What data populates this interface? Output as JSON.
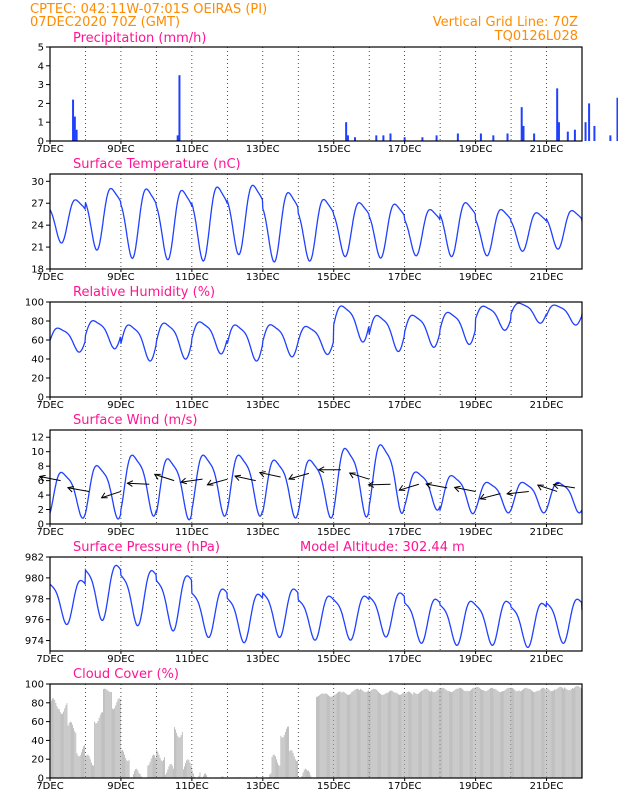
{
  "header": {
    "station": "CPTEC:   042:11W-07:01S   OEIRAS (PI)",
    "run": "07DEC2020 70Z (GMT)",
    "grid_note": "Vertical Grid Line: 70Z",
    "code": "TQ0126L028"
  },
  "colors": {
    "header": "#ff8c00",
    "title": "#ff1493",
    "series": "#2040ff",
    "cloud": "#a8a8a8"
  },
  "x_labels": [
    "7DEC",
    "9DEC",
    "11DEC",
    "13DEC",
    "15DEC",
    "17DEC",
    "19DEC",
    "21DEC"
  ],
  "chart_data": [
    {
      "type": "bar",
      "title": "Precipitation (mm/h)",
      "ylim": [
        0,
        5
      ],
      "yticks": [
        "0",
        "1",
        "2",
        "3",
        "4",
        "5"
      ],
      "x_unit": "days since 7DEC",
      "points": [
        [
          0.65,
          2.2
        ],
        [
          0.7,
          1.3
        ],
        [
          0.75,
          0.6
        ],
        [
          3.65,
          3.5
        ],
        [
          3.6,
          0.3
        ],
        [
          8.35,
          1.0
        ],
        [
          8.4,
          0.3
        ],
        [
          8.6,
          0.2
        ],
        [
          9.2,
          0.3
        ],
        [
          9.4,
          0.3
        ],
        [
          9.6,
          0.4
        ],
        [
          10.0,
          0.2
        ],
        [
          10.5,
          0.2
        ],
        [
          10.9,
          0.3
        ],
        [
          11.5,
          0.4
        ],
        [
          12.15,
          0.4
        ],
        [
          12.5,
          0.3
        ],
        [
          12.9,
          0.4
        ],
        [
          13.3,
          1.8
        ],
        [
          13.35,
          0.8
        ],
        [
          13.65,
          0.4
        ],
        [
          14.3,
          2.8
        ],
        [
          14.35,
          1.0
        ],
        [
          14.6,
          0.5
        ],
        [
          14.8,
          0.6
        ],
        [
          15.1,
          1.0
        ],
        [
          15.2,
          2.0
        ],
        [
          15.35,
          0.8
        ],
        [
          15.8,
          0.3
        ],
        [
          16.0,
          2.3
        ],
        [
          16.1,
          1.5
        ],
        [
          16.2,
          0.8
        ],
        [
          16.4,
          1.0
        ],
        [
          16.6,
          0.6
        ],
        [
          16.8,
          0.5
        ],
        [
          17.0,
          1.2
        ],
        [
          17.1,
          0.6
        ],
        [
          17.3,
          2.0
        ],
        [
          17.4,
          1.9
        ],
        [
          17.5,
          1.5
        ],
        [
          17.6,
          0.6
        ]
      ]
    },
    {
      "type": "line",
      "title": "Surface Temperature (nC)",
      "ylim": [
        18,
        31
      ],
      "yticks": [
        "18",
        "21",
        "24",
        "27",
        "30"
      ],
      "x_unit": "days since 7DEC",
      "mean": [
        25.0,
        25.5,
        25.0,
        24.8,
        25.0,
        25.5,
        24.5,
        24.0,
        24.0,
        23.8,
        23.5,
        24.0,
        23.5,
        23.5,
        23.8,
        23.5
      ],
      "amplitude": [
        2.8,
        4.0,
        4.5,
        4.5,
        4.8,
        4.5,
        4.5,
        4.0,
        3.5,
        3.5,
        3.0,
        3.5,
        3.0,
        2.5,
        2.5,
        2.5
      ]
    },
    {
      "type": "line",
      "title": "Relative Humidity (%)",
      "ylim": [
        0,
        100
      ],
      "yticks": [
        "0",
        "20",
        "40",
        "60",
        "80",
        "100"
      ],
      "x_unit": "days since 7DEC",
      "mean": [
        62,
        68,
        60,
        62,
        65,
        60,
        62,
        62,
        80,
        70,
        72,
        75,
        85,
        90,
        88,
        90
      ],
      "amplitude": [
        12,
        14,
        18,
        18,
        16,
        18,
        16,
        14,
        18,
        18,
        16,
        16,
        12,
        10,
        10,
        10
      ]
    },
    {
      "type": "line",
      "title": "Surface Wind (m/s)",
      "ylim": [
        0,
        13
      ],
      "yticks": [
        "0",
        "2",
        "4",
        "6",
        "8",
        "10",
        "12"
      ],
      "x_unit": "days since 7DEC",
      "mean": [
        4.5,
        5.0,
        6.0,
        5.5,
        6.0,
        6.0,
        5.5,
        5.5,
        6.5,
        7.0,
        5.0,
        4.5,
        4.0,
        4.0,
        4.0,
        4.0
      ],
      "amplitude": [
        3.0,
        3.5,
        4.0,
        4.0,
        4.0,
        4.0,
        3.8,
        3.8,
        4.5,
        4.5,
        2.5,
        2.5,
        2.0,
        2.0,
        2.0,
        2.5
      ],
      "arrows": [
        [
          0.3,
          6.0
        ],
        [
          1.1,
          4.5
        ],
        [
          2.0,
          4.5
        ],
        [
          2.8,
          5.5
        ],
        [
          3.5,
          6.0
        ],
        [
          4.3,
          6.2
        ],
        [
          5.0,
          6.2
        ],
        [
          5.8,
          6.0
        ],
        [
          6.5,
          6.5
        ],
        [
          7.3,
          7.0
        ],
        [
          8.2,
          7.5
        ],
        [
          9.0,
          6.2
        ],
        [
          9.6,
          5.5
        ],
        [
          10.4,
          5.5
        ],
        [
          11.2,
          5.0
        ],
        [
          12.0,
          4.5
        ],
        [
          12.7,
          4.2
        ],
        [
          13.5,
          4.5
        ],
        [
          14.3,
          4.5
        ],
        [
          14.8,
          5.0
        ]
      ]
    },
    {
      "type": "line",
      "title": "Surface Pressure (hPa)",
      "annotation": "Model Altitude: 302.44 m",
      "ylim": [
        973,
        982
      ],
      "yticks": [
        "974",
        "976",
        "978",
        "980",
        "982"
      ],
      "x_unit": "days since 7DEC",
      "mean": [
        978.0,
        979.0,
        978.5,
        978.0,
        977.0,
        976.5,
        977.0,
        976.5,
        976.5,
        976.8,
        976.2,
        976.0,
        976.0,
        975.8,
        976.2,
        975.5
      ],
      "amplitude": [
        2.0,
        2.5,
        2.5,
        2.5,
        2.2,
        2.2,
        2.2,
        2.0,
        2.0,
        2.0,
        2.0,
        2.0,
        2.0,
        2.0,
        2.0,
        2.0
      ]
    },
    {
      "type": "bar",
      "title": "Cloud Cover (%)",
      "ylim": [
        0,
        100
      ],
      "yticks": [
        "0",
        "20",
        "40",
        "60",
        "80",
        "100"
      ],
      "x_unit": "days since 7DEC",
      "segments": [
        [
          0.0,
          0.25,
          85
        ],
        [
          0.25,
          0.5,
          80
        ],
        [
          0.5,
          0.75,
          60
        ],
        [
          0.75,
          1.0,
          35
        ],
        [
          1.0,
          1.25,
          25
        ],
        [
          1.25,
          1.5,
          70
        ],
        [
          1.5,
          1.75,
          95
        ],
        [
          1.75,
          2.0,
          85
        ],
        [
          2.0,
          2.25,
          30
        ],
        [
          2.25,
          2.5,
          10
        ],
        [
          2.5,
          2.75,
          5
        ],
        [
          2.75,
          3.0,
          25
        ],
        [
          3.0,
          3.25,
          30
        ],
        [
          3.25,
          3.5,
          15
        ],
        [
          3.5,
          3.75,
          55
        ],
        [
          3.75,
          4.0,
          20
        ],
        [
          4.0,
          4.25,
          10
        ],
        [
          4.25,
          4.5,
          5
        ],
        [
          4.5,
          4.75,
          3
        ],
        [
          4.75,
          5.0,
          2
        ],
        [
          5.0,
          5.25,
          2
        ],
        [
          5.25,
          5.5,
          1
        ],
        [
          5.5,
          5.75,
          1
        ],
        [
          5.75,
          6.0,
          2
        ],
        [
          6.0,
          6.25,
          5
        ],
        [
          6.25,
          6.5,
          25
        ],
        [
          6.5,
          6.75,
          55
        ],
        [
          6.75,
          7.0,
          30
        ],
        [
          7.0,
          7.25,
          10
        ],
        [
          7.25,
          7.5,
          8
        ],
        [
          7.5,
          7.75,
          90
        ],
        [
          7.75,
          8.0,
          90
        ],
        [
          8.0,
          8.25,
          92
        ],
        [
          8.25,
          8.5,
          92
        ],
        [
          8.5,
          8.75,
          95
        ],
        [
          8.75,
          9.0,
          95
        ],
        [
          9.0,
          9.25,
          95
        ],
        [
          9.25,
          9.5,
          92
        ],
        [
          9.5,
          9.75,
          93
        ],
        [
          9.75,
          10.0,
          92
        ],
        [
          10.0,
          10.25,
          92
        ],
        [
          10.25,
          10.5,
          93
        ],
        [
          10.5,
          10.75,
          95
        ],
        [
          10.75,
          11.0,
          95
        ],
        [
          11.0,
          11.25,
          96
        ],
        [
          11.25,
          11.5,
          95
        ],
        [
          11.5,
          11.75,
          96
        ],
        [
          11.75,
          12.0,
          96
        ],
        [
          12.0,
          12.25,
          97
        ],
        [
          12.25,
          12.5,
          96
        ],
        [
          12.5,
          12.75,
          95
        ],
        [
          12.75,
          13.0,
          96
        ],
        [
          13.0,
          13.25,
          96
        ],
        [
          13.25,
          13.5,
          96
        ],
        [
          13.5,
          13.75,
          95
        ],
        [
          13.75,
          14.0,
          96
        ],
        [
          14.0,
          14.25,
          96
        ],
        [
          14.25,
          14.5,
          97
        ],
        [
          14.5,
          14.75,
          97
        ],
        [
          14.75,
          15.0,
          98
        ]
      ]
    }
  ]
}
